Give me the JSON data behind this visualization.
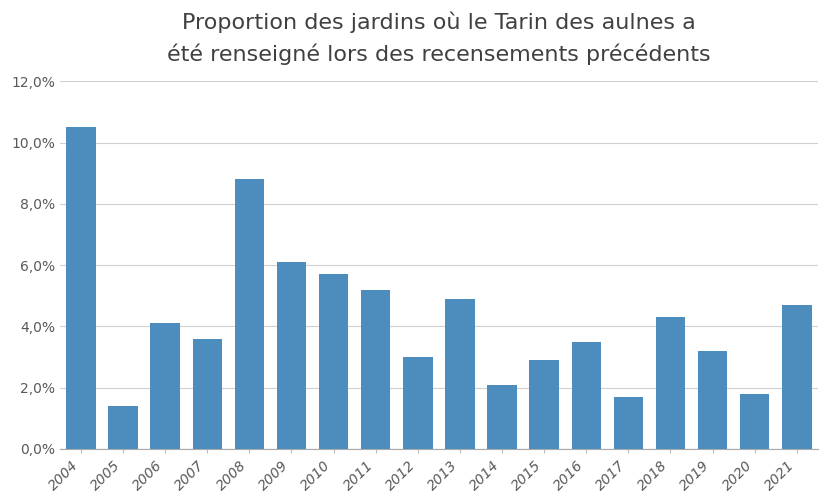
{
  "title_line1": "Proportion des jardins où le Tarin des aulnes a",
  "title_line2": "été renseigné lors des recensements précédents",
  "years": [
    2004,
    2005,
    2006,
    2007,
    2008,
    2009,
    2010,
    2011,
    2012,
    2013,
    2014,
    2015,
    2016,
    2017,
    2018,
    2019,
    2020,
    2021
  ],
  "values": [
    0.105,
    0.014,
    0.041,
    0.036,
    0.088,
    0.061,
    0.057,
    0.052,
    0.03,
    0.049,
    0.021,
    0.029,
    0.035,
    0.017,
    0.043,
    0.032,
    0.018,
    0.047
  ],
  "bar_color": "#4D8DBD",
  "ylim": [
    0,
    0.12
  ],
  "yticks": [
    0.0,
    0.02,
    0.04,
    0.06,
    0.08,
    0.1,
    0.12
  ],
  "ytick_labels": [
    "0,0%",
    "2,0%",
    "4,0%",
    "6,0%",
    "8,0%",
    "10,0%",
    "12,0%"
  ],
  "background_color": "#ffffff",
  "grid_color": "#d0d0d0",
  "title_fontsize": 16,
  "tick_fontsize": 10,
  "label_color": "#595959"
}
